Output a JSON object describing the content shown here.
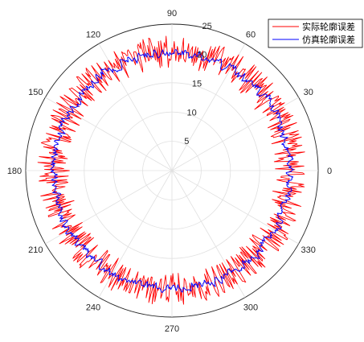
{
  "chart_data": {
    "type": "line",
    "projection": "polar",
    "theta_unit": "degrees",
    "theta_ticks": [
      "0",
      "30",
      "60",
      "90",
      "120",
      "150",
      "180",
      "210",
      "240",
      "270",
      "300",
      "330"
    ],
    "r_ticks": [
      "5",
      "10",
      "15",
      "20",
      "25"
    ],
    "r_lim": [
      0,
      25
    ],
    "grid": true,
    "legend_position": "top-right",
    "series": [
      {
        "name": "实际轮廓误差",
        "color": "#ff0000",
        "mean_radius": 20,
        "deviation_range": [
          -2.5,
          3
        ],
        "sample_count": 720
      },
      {
        "name": "仿真轮廓误差",
        "color": "#0000ff",
        "mean_radius": 20,
        "deviation_range": [
          -1.2,
          1.6
        ],
        "sample_count": 720
      }
    ]
  }
}
